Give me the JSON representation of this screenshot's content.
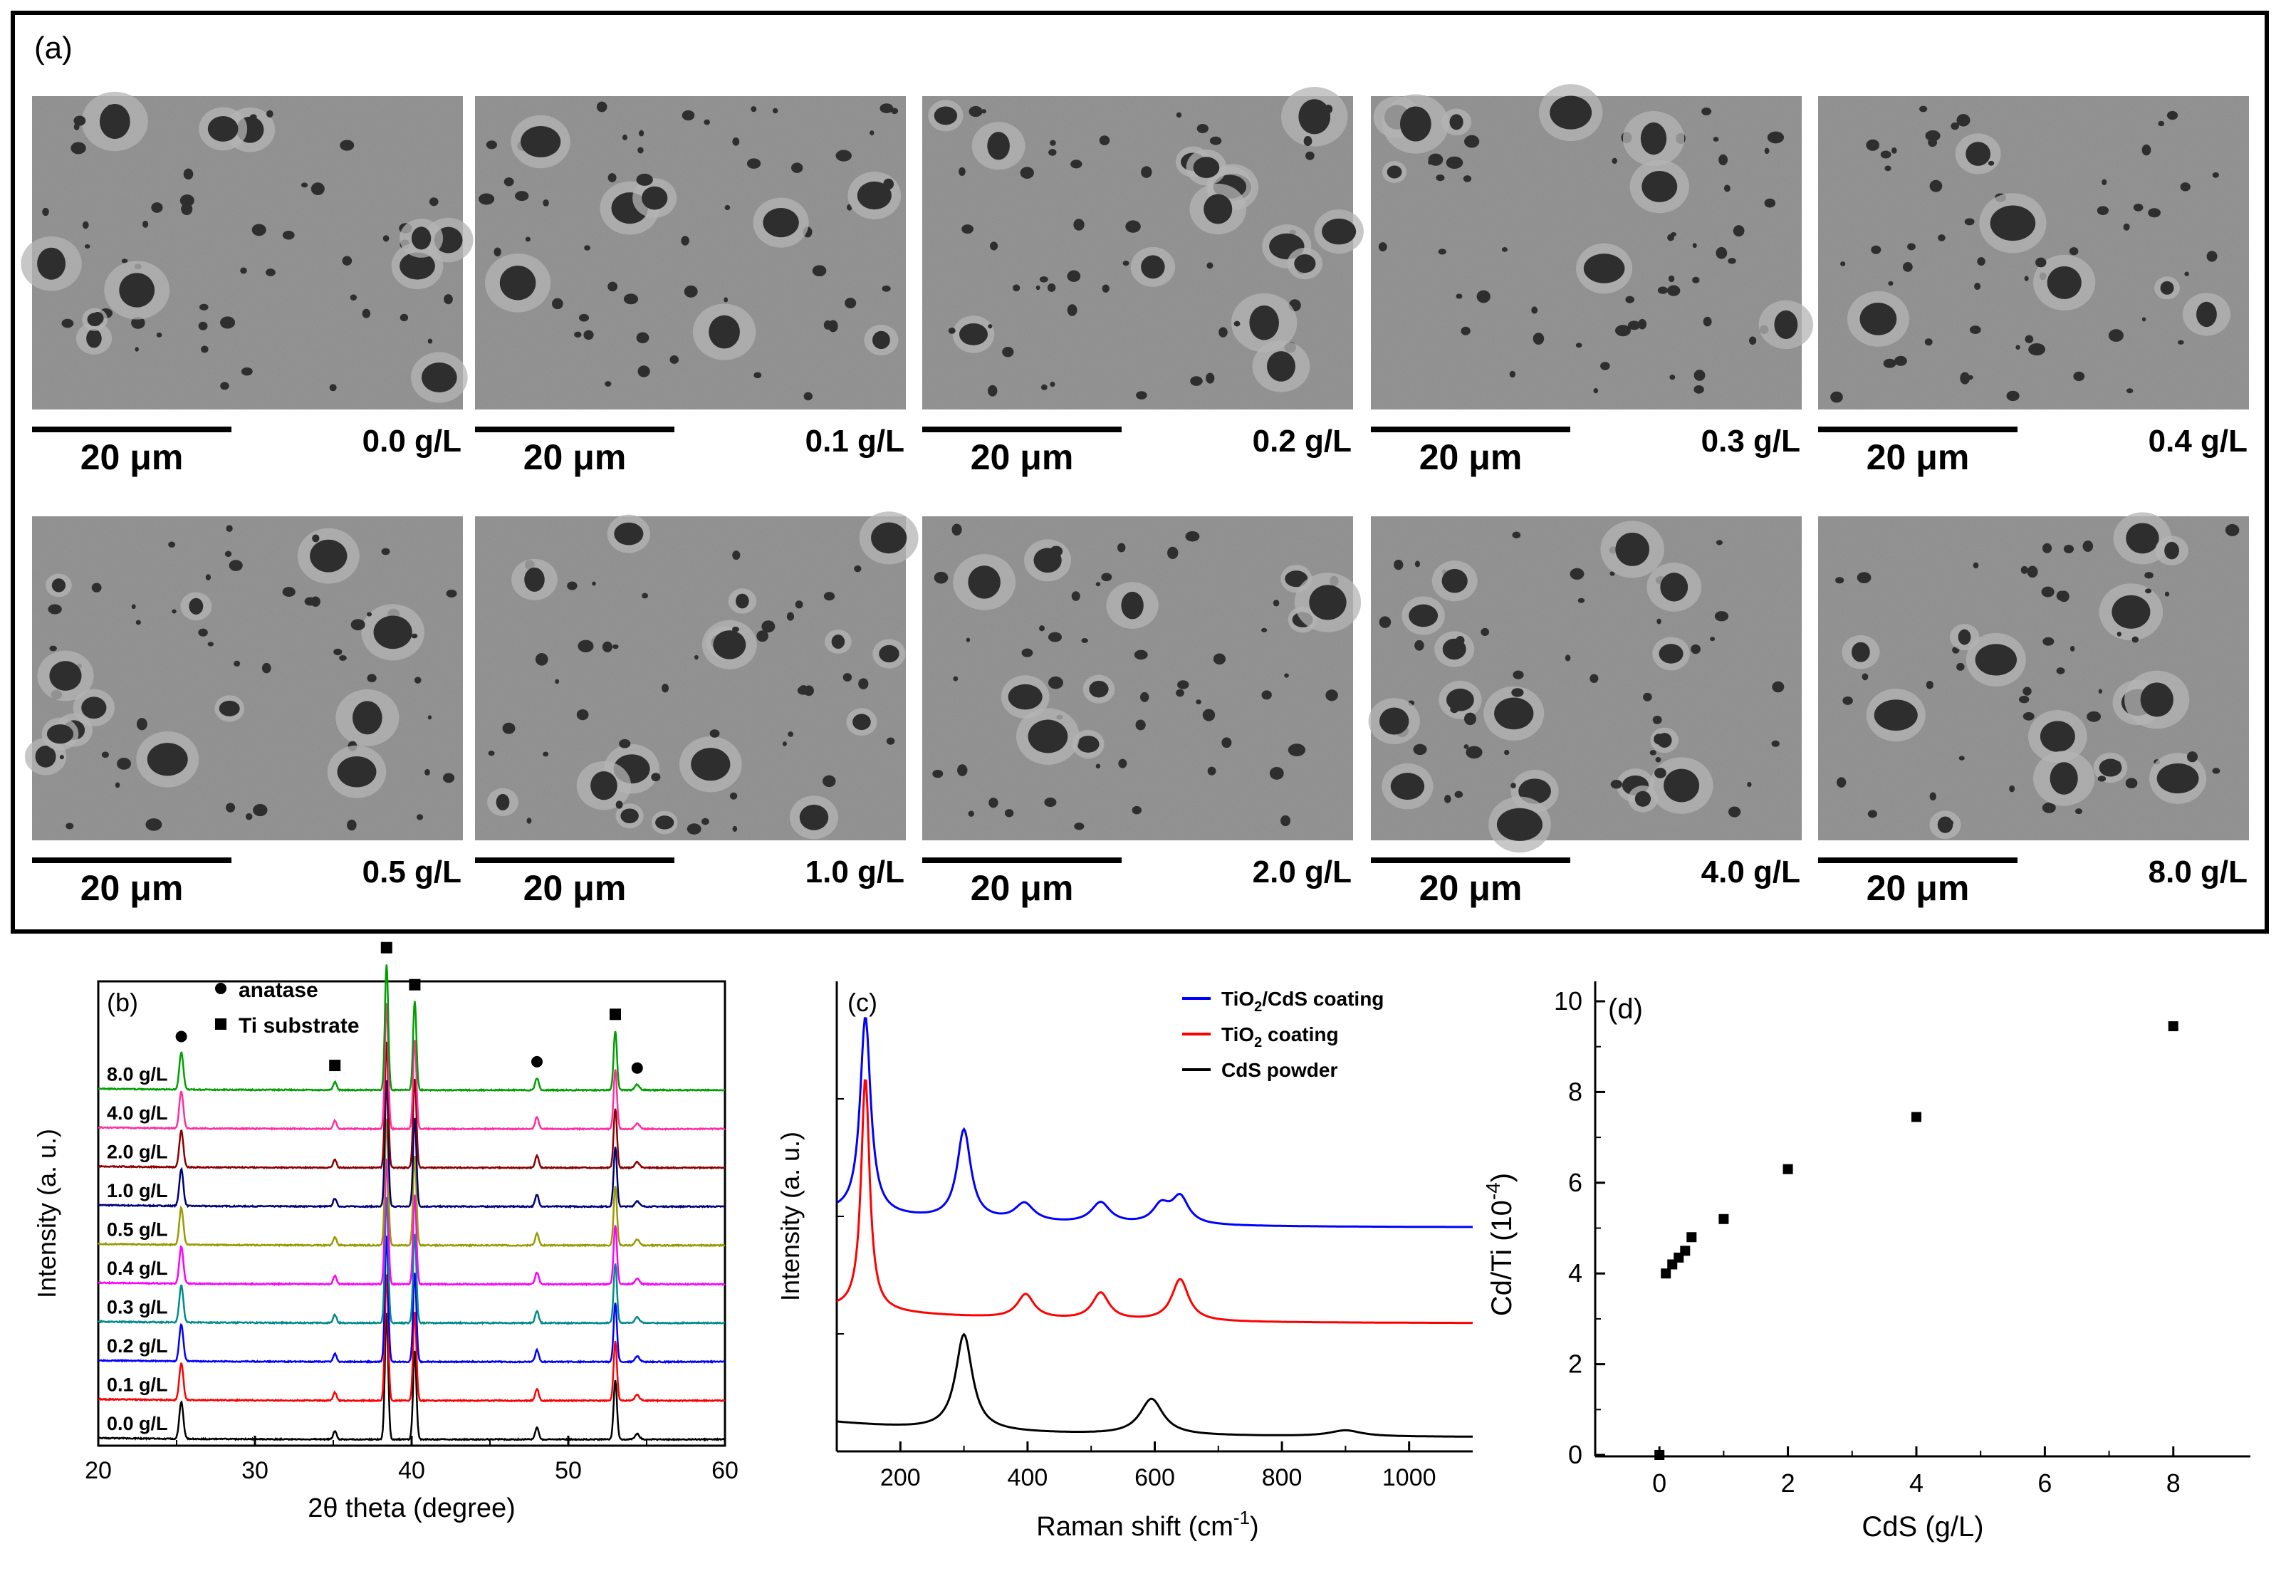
{
  "panel_a": {
    "label": "(a)",
    "micrographs": [
      {
        "scale_bar": "20 μm",
        "concentration": "0.0 g/L"
      },
      {
        "scale_bar": "20 μm",
        "concentration": "0.1 g/L"
      },
      {
        "scale_bar": "20 μm",
        "concentration": "0.2 g/L"
      },
      {
        "scale_bar": "20 μm",
        "concentration": "0.3 g/L"
      },
      {
        "scale_bar": "20 μm",
        "concentration": "0.4 g/L"
      },
      {
        "scale_bar": "20 μm",
        "concentration": "0.5 g/L"
      },
      {
        "scale_bar": "20 μm",
        "concentration": "1.0 g/L"
      },
      {
        "scale_bar": "20 μm",
        "concentration": "2.0 g/L"
      },
      {
        "scale_bar": "20 μm",
        "concentration": "4.0 g/L"
      },
      {
        "scale_bar": "20 μm",
        "concentration": "8.0 g/L"
      }
    ]
  },
  "chart_data": [
    {
      "panel": "(b)",
      "type": "line",
      "title": "",
      "xlabel": "2θ theta (degree)",
      "ylabel": "Intensity (a. u.)",
      "xlim": [
        20,
        60
      ],
      "xticks": [
        20,
        30,
        40,
        50,
        60
      ],
      "legend": [
        {
          "marker": "circle",
          "label": "anatase"
        },
        {
          "marker": "square",
          "label": "Ti substrate"
        }
      ],
      "series": [
        {
          "name": "0.0 g/L",
          "color": "#000000"
        },
        {
          "name": "0.1 g/L",
          "color": "#ff0000"
        },
        {
          "name": "0.2 g/L",
          "color": "#0000ff"
        },
        {
          "name": "0.3 g/L",
          "color": "#008b8b"
        },
        {
          "name": "0.4 g/L",
          "color": "#ff00ff"
        },
        {
          "name": "0.5 g/L",
          "color": "#9a9a00"
        },
        {
          "name": "1.0 g/L",
          "color": "#00007a"
        },
        {
          "name": "2.0 g/L",
          "color": "#8b0000"
        },
        {
          "name": "4.0 g/L",
          "color": "#ff2fa0"
        },
        {
          "name": "8.0 g/L",
          "color": "#00a000"
        }
      ],
      "peaks": [
        {
          "x": 25.3,
          "h": 1.0,
          "w": 0.18,
          "phase": "anatase"
        },
        {
          "x": 35.1,
          "h": 0.22,
          "w": 0.15,
          "phase": "Ti substrate"
        },
        {
          "x": 38.4,
          "h": 3.4,
          "w": 0.15,
          "phase": "Ti substrate"
        },
        {
          "x": 40.2,
          "h": 2.4,
          "w": 0.15,
          "phase": "Ti substrate"
        },
        {
          "x": 48.0,
          "h": 0.32,
          "w": 0.16,
          "phase": "anatase"
        },
        {
          "x": 53.0,
          "h": 1.6,
          "w": 0.15,
          "phase": "Ti substrate"
        },
        {
          "x": 54.4,
          "h": 0.15,
          "w": 0.2,
          "phase": "anatase"
        }
      ],
      "peak_markers": [
        {
          "x": 25.3,
          "marker": "circle"
        },
        {
          "x": 35.1,
          "marker": "square"
        },
        {
          "x": 38.4,
          "marker": "square"
        },
        {
          "x": 40.2,
          "marker": "square"
        },
        {
          "x": 48.0,
          "marker": "circle"
        },
        {
          "x": 53.0,
          "marker": "square"
        },
        {
          "x": 54.4,
          "marker": "circle"
        }
      ]
    },
    {
      "panel": "(c)",
      "type": "line",
      "title": "",
      "xlabel": "Raman shift (cm",
      "xlabel_sup": "-1",
      "xlabel_end": ")",
      "ylabel": "Intensity (a. u.)",
      "xlim": [
        100,
        1100
      ],
      "xticks": [
        200,
        400,
        600,
        800,
        1000
      ],
      "series": [
        {
          "name": "TiO2/CdS coating",
          "color": "#0000ff",
          "baseline": 0.72,
          "peaks": [
            [
              145,
              0.66,
              10
            ],
            [
              300,
              0.3,
              13
            ],
            [
              395,
              0.06,
              18
            ],
            [
              515,
              0.07,
              18
            ],
            [
              610,
              0.06,
              16
            ],
            [
              640,
              0.09,
              16
            ]
          ]
        },
        {
          "name": "TiO2 coating",
          "color": "#ff0000",
          "baseline": 0.4,
          "peaks": [
            [
              145,
              0.78,
              8
            ],
            [
              397,
              0.08,
              16
            ],
            [
              515,
              0.09,
              16
            ],
            [
              640,
              0.14,
              16
            ]
          ]
        },
        {
          "name": "CdS powder",
          "color": "#000000",
          "baseline": 0.02,
          "peaks": [
            [
              300,
              0.32,
              16
            ],
            [
              595,
              0.12,
              22
            ],
            [
              900,
              0.02,
              30
            ]
          ]
        }
      ],
      "legend": [
        {
          "label": "TiO",
          "sub": "2",
          "tail": "/CdS coating",
          "color": "#0000ff"
        },
        {
          "label": "TiO",
          "sub": "2",
          "tail": " coating",
          "color": "#ff0000"
        },
        {
          "label": "CdS powder",
          "sub": "",
          "tail": "",
          "color": "#000000"
        }
      ]
    },
    {
      "panel": "(d)",
      "type": "scatter",
      "title": "",
      "xlabel": "CdS (g/L)",
      "ylabel": "Cd/Ti (10",
      "ylabel_sup": "-4",
      "ylabel_end": ")",
      "xlim": [
        -1,
        9.2
      ],
      "ylim": [
        0,
        10
      ],
      "xticks": [
        0,
        2,
        4,
        6,
        8
      ],
      "yticks": [
        0,
        2,
        4,
        6,
        8,
        10
      ],
      "x": [
        0.0,
        0.1,
        0.2,
        0.3,
        0.4,
        0.5,
        1.0,
        2.0,
        4.0,
        8.0
      ],
      "y": [
        0.0,
        4.0,
        4.2,
        4.35,
        4.5,
        4.8,
        5.2,
        6.3,
        7.45,
        9.45
      ]
    }
  ]
}
